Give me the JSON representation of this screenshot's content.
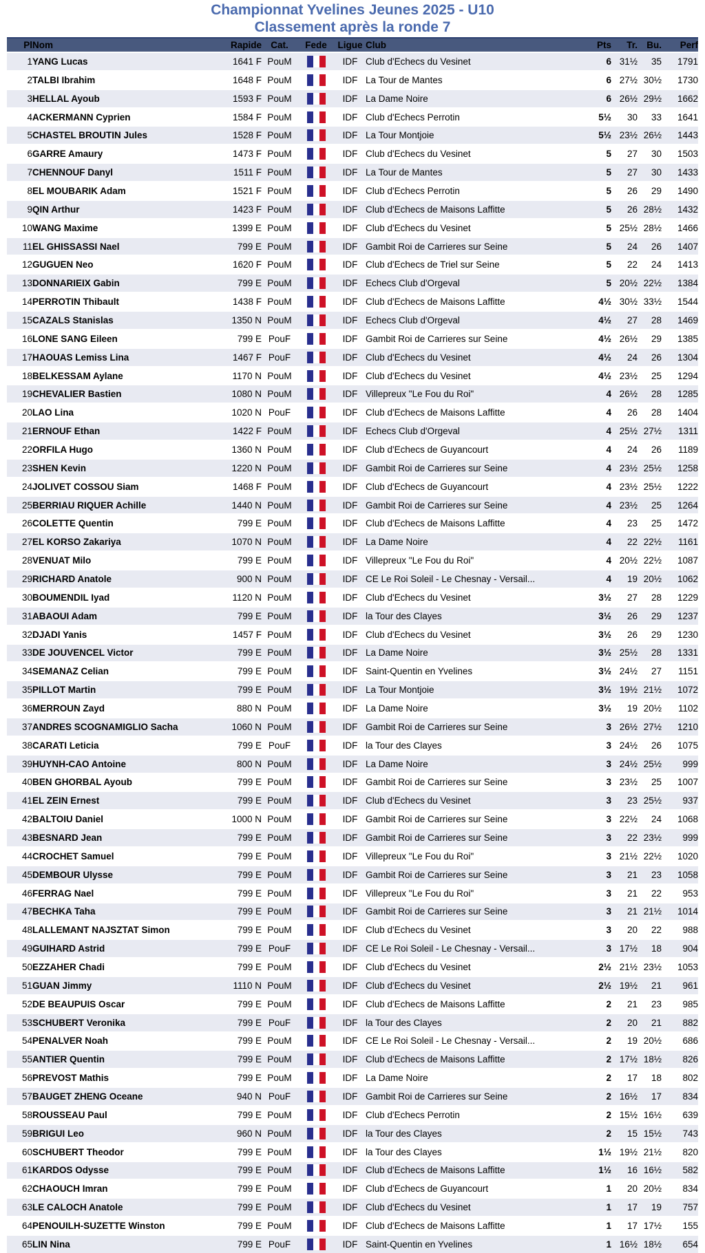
{
  "title": {
    "line1": "Championnat Yvelines Jeunes 2025 - U10",
    "line2": "Classement après la ronde 7"
  },
  "colors": {
    "title_color": "#4a6aae",
    "header_bg": "#48597e",
    "header_border": "#2c4071",
    "stripe": "#e8eaf2",
    "flag_blue": "#292f8e",
    "flag_red": "#ce1126"
  },
  "icons": {
    "fede": "france-flag-icon"
  },
  "table": {
    "columns": [
      {
        "key": "pl",
        "label": "Pl"
      },
      {
        "key": "nom",
        "label": "Nom"
      },
      {
        "key": "rapide",
        "label": "Rapide"
      },
      {
        "key": "cat",
        "label": "Cat."
      },
      {
        "key": "fede",
        "label": "Fede"
      },
      {
        "key": "ligue",
        "label": "Ligue"
      },
      {
        "key": "club",
        "label": "Club"
      },
      {
        "key": "pts",
        "label": "Pts"
      },
      {
        "key": "tr",
        "label": "Tr."
      },
      {
        "key": "bu",
        "label": "Bu."
      },
      {
        "key": "perf",
        "label": "Perf"
      }
    ],
    "rows": [
      {
        "pl": "1",
        "nom": "YANG Lucas",
        "rapide": "1641 F",
        "cat": "PouM",
        "ligue": "IDF",
        "club": "Club d'Echecs du Vesinet",
        "pts": "6",
        "tr": "31½",
        "bu": "35",
        "perf": "1791"
      },
      {
        "pl": "2",
        "nom": "TALBI Ibrahim",
        "rapide": "1648 F",
        "cat": "PouM",
        "ligue": "IDF",
        "club": "La Tour de Mantes",
        "pts": "6",
        "tr": "27½",
        "bu": "30½",
        "perf": "1730"
      },
      {
        "pl": "3",
        "nom": "HELLAL Ayoub",
        "rapide": "1593 F",
        "cat": "PouM",
        "ligue": "IDF",
        "club": "La Dame Noire",
        "pts": "6",
        "tr": "26½",
        "bu": "29½",
        "perf": "1662"
      },
      {
        "pl": "4",
        "nom": "ACKERMANN Cyprien",
        "rapide": "1584 F",
        "cat": "PouM",
        "ligue": "IDF",
        "club": "Club d'Echecs Perrotin",
        "pts": "5½",
        "tr": "30",
        "bu": "33",
        "perf": "1641"
      },
      {
        "pl": "5",
        "nom": "CHASTEL BROUTIN Jules",
        "rapide": "1528 F",
        "cat": "PouM",
        "ligue": "IDF",
        "club": "La Tour Montjoie",
        "pts": "5½",
        "tr": "23½",
        "bu": "26½",
        "perf": "1443"
      },
      {
        "pl": "6",
        "nom": "GARRE Amaury",
        "rapide": "1473 F",
        "cat": "PouM",
        "ligue": "IDF",
        "club": "Club d'Echecs du Vesinet",
        "pts": "5",
        "tr": "27",
        "bu": "30",
        "perf": "1503"
      },
      {
        "pl": "7",
        "nom": "CHENNOUF Danyl",
        "rapide": "1511 F",
        "cat": "PouM",
        "ligue": "IDF",
        "club": "La Tour de Mantes",
        "pts": "5",
        "tr": "27",
        "bu": "30",
        "perf": "1433"
      },
      {
        "pl": "8",
        "nom": "EL MOUBARIK Adam",
        "rapide": "1521 F",
        "cat": "PouM",
        "ligue": "IDF",
        "club": "Club d'Echecs Perrotin",
        "pts": "5",
        "tr": "26",
        "bu": "29",
        "perf": "1490"
      },
      {
        "pl": "9",
        "nom": "QIN Arthur",
        "rapide": "1423 F",
        "cat": "PouM",
        "ligue": "IDF",
        "club": "Club d'Echecs de Maisons Laffitte",
        "pts": "5",
        "tr": "26",
        "bu": "28½",
        "perf": "1432"
      },
      {
        "pl": "10",
        "nom": "WANG Maxime",
        "rapide": "1399 E",
        "cat": "PouM",
        "ligue": "IDF",
        "club": "Club d'Echecs du Vesinet",
        "pts": "5",
        "tr": "25½",
        "bu": "28½",
        "perf": "1466"
      },
      {
        "pl": "11",
        "nom": "EL GHISSASSI Nael",
        "rapide": "799 E",
        "cat": "PouM",
        "ligue": "IDF",
        "club": "Gambit Roi de Carrieres sur Seine",
        "pts": "5",
        "tr": "24",
        "bu": "26",
        "perf": "1407"
      },
      {
        "pl": "12",
        "nom": "GUGUEN Neo",
        "rapide": "1620 F",
        "cat": "PouM",
        "ligue": "IDF",
        "club": "Club d'Echecs de Triel sur Seine",
        "pts": "5",
        "tr": "22",
        "bu": "24",
        "perf": "1413"
      },
      {
        "pl": "13",
        "nom": "DONNARIEIX Gabin",
        "rapide": "799 E",
        "cat": "PouM",
        "ligue": "IDF",
        "club": "Echecs Club d'Orgeval",
        "pts": "5",
        "tr": "20½",
        "bu": "22½",
        "perf": "1384"
      },
      {
        "pl": "14",
        "nom": "PERROTIN Thibault",
        "rapide": "1438 F",
        "cat": "PouM",
        "ligue": "IDF",
        "club": "Club d'Echecs de Maisons Laffitte",
        "pts": "4½",
        "tr": "30½",
        "bu": "33½",
        "perf": "1544"
      },
      {
        "pl": "15",
        "nom": "CAZALS Stanislas",
        "rapide": "1350 N",
        "cat": "PouM",
        "ligue": "IDF",
        "club": "Echecs Club d'Orgeval",
        "pts": "4½",
        "tr": "27",
        "bu": "28",
        "perf": "1469"
      },
      {
        "pl": "16",
        "nom": "LONE SANG Eileen",
        "rapide": "799 E",
        "cat": "PouF",
        "ligue": "IDF",
        "club": "Gambit Roi de Carrieres sur Seine",
        "pts": "4½",
        "tr": "26½",
        "bu": "29",
        "perf": "1385"
      },
      {
        "pl": "17",
        "nom": "HAOUAS Lemiss Lina",
        "rapide": "1467 F",
        "cat": "PouF",
        "ligue": "IDF",
        "club": "Club d'Echecs du Vesinet",
        "pts": "4½",
        "tr": "24",
        "bu": "26",
        "perf": "1304"
      },
      {
        "pl": "18",
        "nom": "BELKESSAM Aylane",
        "rapide": "1170 N",
        "cat": "PouM",
        "ligue": "IDF",
        "club": "Club d'Echecs du Vesinet",
        "pts": "4½",
        "tr": "23½",
        "bu": "25",
        "perf": "1294"
      },
      {
        "pl": "19",
        "nom": "CHEVALIER Bastien",
        "rapide": "1080 N",
        "cat": "PouM",
        "ligue": "IDF",
        "club": "Villepreux \"Le Fou du Roi\"",
        "pts": "4",
        "tr": "26½",
        "bu": "28",
        "perf": "1285"
      },
      {
        "pl": "20",
        "nom": "LAO Lina",
        "rapide": "1020 N",
        "cat": "PouF",
        "ligue": "IDF",
        "club": "Club d'Echecs de Maisons Laffitte",
        "pts": "4",
        "tr": "26",
        "bu": "28",
        "perf": "1404"
      },
      {
        "pl": "21",
        "nom": "ERNOUF Ethan",
        "rapide": "1422 F",
        "cat": "PouM",
        "ligue": "IDF",
        "club": "Echecs Club d'Orgeval",
        "pts": "4",
        "tr": "25½",
        "bu": "27½",
        "perf": "1311"
      },
      {
        "pl": "22",
        "nom": "ORFILA Hugo",
        "rapide": "1360 N",
        "cat": "PouM",
        "ligue": "IDF",
        "club": "Club d'Echecs de Guyancourt",
        "pts": "4",
        "tr": "24",
        "bu": "26",
        "perf": "1189"
      },
      {
        "pl": "23",
        "nom": "SHEN Kevin",
        "rapide": "1220 N",
        "cat": "PouM",
        "ligue": "IDF",
        "club": "Gambit Roi de Carrieres sur Seine",
        "pts": "4",
        "tr": "23½",
        "bu": "25½",
        "perf": "1258"
      },
      {
        "pl": "24",
        "nom": "JOLIVET COSSOU Siam",
        "rapide": "1468 F",
        "cat": "PouM",
        "ligue": "IDF",
        "club": "Club d'Echecs de Guyancourt",
        "pts": "4",
        "tr": "23½",
        "bu": "25½",
        "perf": "1222"
      },
      {
        "pl": "25",
        "nom": "BERRIAU RIQUER Achille",
        "rapide": "1440 N",
        "cat": "PouM",
        "ligue": "IDF",
        "club": "Gambit Roi de Carrieres sur Seine",
        "pts": "4",
        "tr": "23½",
        "bu": "25",
        "perf": "1264"
      },
      {
        "pl": "26",
        "nom": "COLETTE Quentin",
        "rapide": "799 E",
        "cat": "PouM",
        "ligue": "IDF",
        "club": "Club d'Echecs de Maisons Laffitte",
        "pts": "4",
        "tr": "23",
        "bu": "25",
        "perf": "1472"
      },
      {
        "pl": "27",
        "nom": "EL KORSO Zakariya",
        "rapide": "1070 N",
        "cat": "PouM",
        "ligue": "IDF",
        "club": "La Dame Noire",
        "pts": "4",
        "tr": "22",
        "bu": "22½",
        "perf": "1161"
      },
      {
        "pl": "28",
        "nom": "VENUAT Milo",
        "rapide": "799 E",
        "cat": "PouM",
        "ligue": "IDF",
        "club": "Villepreux \"Le Fou du Roi\"",
        "pts": "4",
        "tr": "20½",
        "bu": "22½",
        "perf": "1087"
      },
      {
        "pl": "29",
        "nom": "RICHARD Anatole",
        "rapide": "900 N",
        "cat": "PouM",
        "ligue": "IDF",
        "club": "CE Le Roi Soleil - Le Chesnay - Versail...",
        "pts": "4",
        "tr": "19",
        "bu": "20½",
        "perf": "1062"
      },
      {
        "pl": "30",
        "nom": "BOUMENDIL Iyad",
        "rapide": "1120 N",
        "cat": "PouM",
        "ligue": "IDF",
        "club": "Club d'Echecs du Vesinet",
        "pts": "3½",
        "tr": "27",
        "bu": "28",
        "perf": "1229"
      },
      {
        "pl": "31",
        "nom": "ABAOUI Adam",
        "rapide": "799 E",
        "cat": "PouM",
        "ligue": "IDF",
        "club": "la Tour des Clayes",
        "pts": "3½",
        "tr": "26",
        "bu": "29",
        "perf": "1237"
      },
      {
        "pl": "32",
        "nom": "DJADI Yanis",
        "rapide": "1457 F",
        "cat": "PouM",
        "ligue": "IDF",
        "club": "Club d'Echecs du Vesinet",
        "pts": "3½",
        "tr": "26",
        "bu": "29",
        "perf": "1230"
      },
      {
        "pl": "33",
        "nom": "DE JOUVENCEL Victor",
        "rapide": "799 E",
        "cat": "PouM",
        "ligue": "IDF",
        "club": "La Dame Noire",
        "pts": "3½",
        "tr": "25½",
        "bu": "28",
        "perf": "1331"
      },
      {
        "pl": "34",
        "nom": "SEMANAZ Celian",
        "rapide": "799 E",
        "cat": "PouM",
        "ligue": "IDF",
        "club": "Saint-Quentin en Yvelines",
        "pts": "3½",
        "tr": "24½",
        "bu": "27",
        "perf": "1151"
      },
      {
        "pl": "35",
        "nom": "PILLOT Martin",
        "rapide": "799 E",
        "cat": "PouM",
        "ligue": "IDF",
        "club": "La Tour Montjoie",
        "pts": "3½",
        "tr": "19½",
        "bu": "21½",
        "perf": "1072"
      },
      {
        "pl": "36",
        "nom": "MERROUN Zayd",
        "rapide": "880 N",
        "cat": "PouM",
        "ligue": "IDF",
        "club": "La Dame Noire",
        "pts": "3½",
        "tr": "19",
        "bu": "20½",
        "perf": "1102"
      },
      {
        "pl": "37",
        "nom": "ANDRES SCOGNAMIGLIO Sacha",
        "rapide": "1060 N",
        "cat": "PouM",
        "ligue": "IDF",
        "club": "Gambit Roi de Carrieres sur Seine",
        "pts": "3",
        "tr": "26½",
        "bu": "27½",
        "perf": "1210"
      },
      {
        "pl": "38",
        "nom": "CARATI Leticia",
        "rapide": "799 E",
        "cat": "PouF",
        "ligue": "IDF",
        "club": "la Tour des Clayes",
        "pts": "3",
        "tr": "24½",
        "bu": "26",
        "perf": "1075"
      },
      {
        "pl": "39",
        "nom": "HUYNH-CAO Antoine",
        "rapide": "800 N",
        "cat": "PouM",
        "ligue": "IDF",
        "club": "La Dame Noire",
        "pts": "3",
        "tr": "24½",
        "bu": "25½",
        "perf": "999"
      },
      {
        "pl": "40",
        "nom": "BEN GHORBAL Ayoub",
        "rapide": "799 E",
        "cat": "PouM",
        "ligue": "IDF",
        "club": "Gambit Roi de Carrieres sur Seine",
        "pts": "3",
        "tr": "23½",
        "bu": "25",
        "perf": "1007"
      },
      {
        "pl": "41",
        "nom": "EL ZEIN Ernest",
        "rapide": "799 E",
        "cat": "PouM",
        "ligue": "IDF",
        "club": "Club d'Echecs du Vesinet",
        "pts": "3",
        "tr": "23",
        "bu": "25½",
        "perf": "937"
      },
      {
        "pl": "42",
        "nom": "BALTOIU Daniel",
        "rapide": "1000 N",
        "cat": "PouM",
        "ligue": "IDF",
        "club": "Gambit Roi de Carrieres sur Seine",
        "pts": "3",
        "tr": "22½",
        "bu": "24",
        "perf": "1068"
      },
      {
        "pl": "43",
        "nom": "BESNARD Jean",
        "rapide": "799 E",
        "cat": "PouM",
        "ligue": "IDF",
        "club": "Gambit Roi de Carrieres sur Seine",
        "pts": "3",
        "tr": "22",
        "bu": "23½",
        "perf": "999"
      },
      {
        "pl": "44",
        "nom": "CROCHET Samuel",
        "rapide": "799 E",
        "cat": "PouM",
        "ligue": "IDF",
        "club": "Villepreux \"Le Fou du Roi\"",
        "pts": "3",
        "tr": "21½",
        "bu": "22½",
        "perf": "1020"
      },
      {
        "pl": "45",
        "nom": "DEMBOUR Ulysse",
        "rapide": "799 E",
        "cat": "PouM",
        "ligue": "IDF",
        "club": "Gambit Roi de Carrieres sur Seine",
        "pts": "3",
        "tr": "21",
        "bu": "23",
        "perf": "1058"
      },
      {
        "pl": "46",
        "nom": "FERRAG Nael",
        "rapide": "799 E",
        "cat": "PouM",
        "ligue": "IDF",
        "club": "Villepreux \"Le Fou du Roi\"",
        "pts": "3",
        "tr": "21",
        "bu": "22",
        "perf": "953"
      },
      {
        "pl": "47",
        "nom": "BECHKA Taha",
        "rapide": "799 E",
        "cat": "PouM",
        "ligue": "IDF",
        "club": "Gambit Roi de Carrieres sur Seine",
        "pts": "3",
        "tr": "21",
        "bu": "21½",
        "perf": "1014"
      },
      {
        "pl": "48",
        "nom": "LALLEMANT NAJSZTAT Simon",
        "rapide": "799 E",
        "cat": "PouM",
        "ligue": "IDF",
        "club": "Club d'Echecs du Vesinet",
        "pts": "3",
        "tr": "20",
        "bu": "22",
        "perf": "988"
      },
      {
        "pl": "49",
        "nom": "GUIHARD Astrid",
        "rapide": "799 E",
        "cat": "PouF",
        "ligue": "IDF",
        "club": "CE Le Roi Soleil - Le Chesnay - Versail...",
        "pts": "3",
        "tr": "17½",
        "bu": "18",
        "perf": "904"
      },
      {
        "pl": "50",
        "nom": "EZZAHER Chadi",
        "rapide": "799 E",
        "cat": "PouM",
        "ligue": "IDF",
        "club": "Club d'Echecs du Vesinet",
        "pts": "2½",
        "tr": "21½",
        "bu": "23½",
        "perf": "1053"
      },
      {
        "pl": "51",
        "nom": "GUAN Jimmy",
        "rapide": "1110 N",
        "cat": "PouM",
        "ligue": "IDF",
        "club": "Club d'Echecs du Vesinet",
        "pts": "2½",
        "tr": "19½",
        "bu": "21",
        "perf": "961"
      },
      {
        "pl": "52",
        "nom": "DE BEAUPUIS Oscar",
        "rapide": "799 E",
        "cat": "PouM",
        "ligue": "IDF",
        "club": "Club d'Echecs de Maisons Laffitte",
        "pts": "2",
        "tr": "21",
        "bu": "23",
        "perf": "985"
      },
      {
        "pl": "53",
        "nom": "SCHUBERT Veronika",
        "rapide": "799 E",
        "cat": "PouF",
        "ligue": "IDF",
        "club": "la Tour des Clayes",
        "pts": "2",
        "tr": "20",
        "bu": "21",
        "perf": "882"
      },
      {
        "pl": "54",
        "nom": "PENALVER Noah",
        "rapide": "799 E",
        "cat": "PouM",
        "ligue": "IDF",
        "club": "CE Le Roi Soleil - Le Chesnay - Versail...",
        "pts": "2",
        "tr": "19",
        "bu": "20½",
        "perf": "686"
      },
      {
        "pl": "55",
        "nom": "ANTIER Quentin",
        "rapide": "799 E",
        "cat": "PouM",
        "ligue": "IDF",
        "club": "Club d'Echecs de Maisons Laffitte",
        "pts": "2",
        "tr": "17½",
        "bu": "18½",
        "perf": "826"
      },
      {
        "pl": "56",
        "nom": "PREVOST Mathis",
        "rapide": "799 E",
        "cat": "PouM",
        "ligue": "IDF",
        "club": "La Dame Noire",
        "pts": "2",
        "tr": "17",
        "bu": "18",
        "perf": "802"
      },
      {
        "pl": "57",
        "nom": "BAUGET ZHENG Oceane",
        "rapide": "940 N",
        "cat": "PouF",
        "ligue": "IDF",
        "club": "Gambit Roi de Carrieres sur Seine",
        "pts": "2",
        "tr": "16½",
        "bu": "17",
        "perf": "834"
      },
      {
        "pl": "58",
        "nom": "ROUSSEAU Paul",
        "rapide": "799 E",
        "cat": "PouM",
        "ligue": "IDF",
        "club": "Club d'Echecs Perrotin",
        "pts": "2",
        "tr": "15½",
        "bu": "16½",
        "perf": "639"
      },
      {
        "pl": "59",
        "nom": "BRIGUI Leo",
        "rapide": "960 N",
        "cat": "PouM",
        "ligue": "IDF",
        "club": "la Tour des Clayes",
        "pts": "2",
        "tr": "15",
        "bu": "15½",
        "perf": "743"
      },
      {
        "pl": "60",
        "nom": "SCHUBERT Theodor",
        "rapide": "799 E",
        "cat": "PouM",
        "ligue": "IDF",
        "club": "la Tour des Clayes",
        "pts": "1½",
        "tr": "19½",
        "bu": "21½",
        "perf": "820"
      },
      {
        "pl": "61",
        "nom": "KARDOS Odysse",
        "rapide": "799 E",
        "cat": "PouM",
        "ligue": "IDF",
        "club": "Club d'Echecs de Maisons Laffitte",
        "pts": "1½",
        "tr": "16",
        "bu": "16½",
        "perf": "582"
      },
      {
        "pl": "62",
        "nom": "CHAOUCH Imran",
        "rapide": "799 E",
        "cat": "PouM",
        "ligue": "IDF",
        "club": "Club d'Echecs de Guyancourt",
        "pts": "1",
        "tr": "20",
        "bu": "20½",
        "perf": "834"
      },
      {
        "pl": "63",
        "nom": "LE CALOCH Anatole",
        "rapide": "799 E",
        "cat": "PouM",
        "ligue": "IDF",
        "club": "Club d'Echecs du Vesinet",
        "pts": "1",
        "tr": "17",
        "bu": "19",
        "perf": "757"
      },
      {
        "pl": "64",
        "nom": "PENOUILH-SUZETTE Winston",
        "rapide": "799 E",
        "cat": "PouM",
        "ligue": "IDF",
        "club": "Club d'Echecs de Maisons Laffitte",
        "pts": "1",
        "tr": "17",
        "bu": "17½",
        "perf": "155"
      },
      {
        "pl": "65",
        "nom": "LIN Nina",
        "rapide": "799 E",
        "cat": "PouF",
        "ligue": "IDF",
        "club": "Saint-Quentin en Yvelines",
        "pts": "1",
        "tr": "16½",
        "bu": "18½",
        "perf": "654"
      }
    ]
  }
}
